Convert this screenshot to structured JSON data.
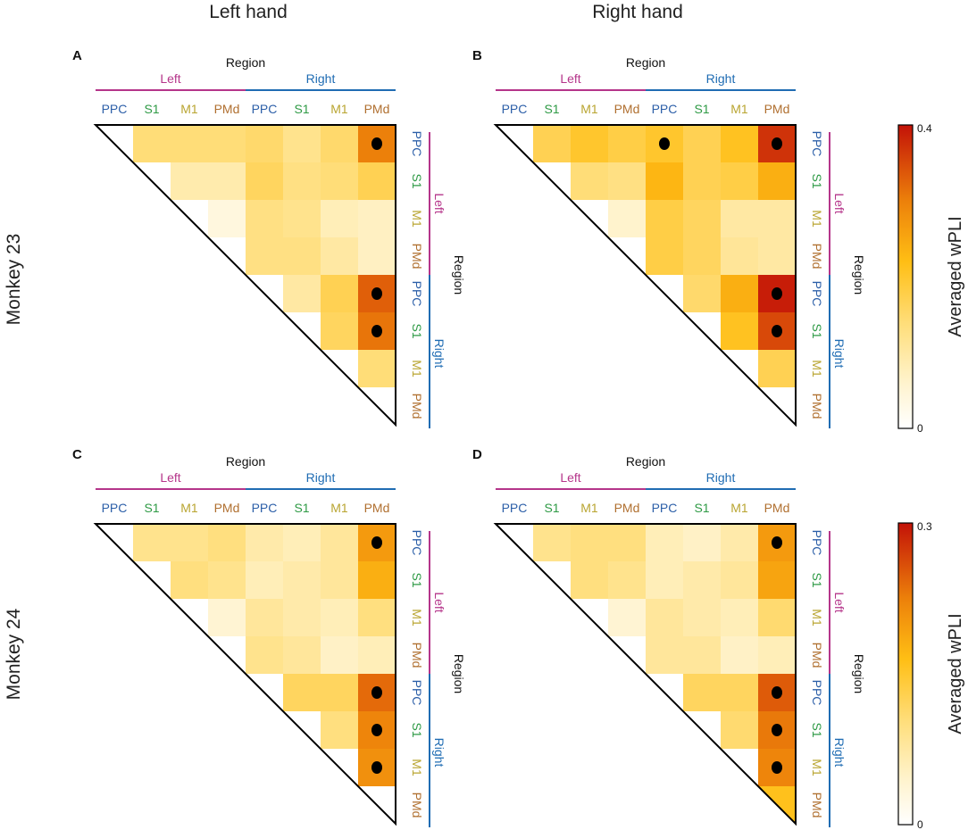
{
  "figure": {
    "col_titles": [
      "Left hand",
      "Right hand"
    ],
    "row_titles": [
      "Monkey 23",
      "Monkey 24"
    ],
    "region_label": "Region",
    "hemispheres": [
      "Left",
      "Right"
    ],
    "regions": [
      "PPC",
      "S1",
      "M1",
      "PMd",
      "PPC",
      "S1",
      "M1",
      "PMd"
    ],
    "colorbar_label": "Averaged wPLI",
    "colors": {
      "left_hemi": "#b5358a",
      "right_hemi": "#1f6cb3",
      "PPC": "#2c5fa8",
      "S1": "#2e9a45",
      "M1": "#b9a531",
      "PMd": "#b07030",
      "dot": "#000000"
    }
  },
  "chart_data": [
    {
      "type": "heatmap",
      "panel": "A",
      "hand": "Left hand",
      "monkey": "Monkey 23",
      "vmin": 0,
      "vmax": 0.4,
      "colorbar_ticks": [
        "0",
        "0.4"
      ],
      "rows": [
        "PPC",
        "S1",
        "M1",
        "PMd",
        "PPC",
        "S1",
        "M1",
        "PMd"
      ],
      "cols": [
        "PPC",
        "S1",
        "M1",
        "PMd",
        "PPC",
        "S1",
        "M1",
        "PMd"
      ],
      "values": [
        [
          0,
          0.14,
          0.14,
          0.14,
          0.15,
          0.12,
          0.15,
          0.3
        ],
        [
          0,
          0,
          0.09,
          0.09,
          0.16,
          0.13,
          0.14,
          0.17
        ],
        [
          0,
          0,
          0,
          0.04,
          0.13,
          0.12,
          0.08,
          0.07
        ],
        [
          0,
          0,
          0,
          0,
          0.13,
          0.13,
          0.1,
          0.07
        ],
        [
          0,
          0,
          0,
          0,
          0,
          0.1,
          0.17,
          0.33
        ],
        [
          0,
          0,
          0,
          0,
          0,
          0,
          0.16,
          0.31
        ],
        [
          0,
          0,
          0,
          0,
          0,
          0,
          0,
          0.14
        ],
        [
          0,
          0,
          0,
          0,
          0,
          0,
          0,
          0
        ]
      ],
      "significant": [
        [
          0,
          7
        ],
        [
          4,
          7
        ],
        [
          5,
          7
        ]
      ]
    },
    {
      "type": "heatmap",
      "panel": "B",
      "hand": "Right hand",
      "monkey": "Monkey 23",
      "vmin": 0,
      "vmax": 0.4,
      "colorbar_ticks": [
        "0",
        "0.4"
      ],
      "rows": [
        "PPC",
        "S1",
        "M1",
        "PMd",
        "PPC",
        "S1",
        "M1",
        "PMd"
      ],
      "cols": [
        "PPC",
        "S1",
        "M1",
        "PMd",
        "PPC",
        "S1",
        "M1",
        "PMd"
      ],
      "values": [
        [
          0,
          0.17,
          0.2,
          0.18,
          0.2,
          0.17,
          0.21,
          0.37
        ],
        [
          0,
          0,
          0.14,
          0.13,
          0.23,
          0.17,
          0.18,
          0.24
        ],
        [
          0,
          0,
          0,
          0.06,
          0.18,
          0.16,
          0.1,
          0.1
        ],
        [
          0,
          0,
          0,
          0,
          0.18,
          0.16,
          0.11,
          0.1
        ],
        [
          0,
          0,
          0,
          0,
          0,
          0.15,
          0.24,
          0.39
        ],
        [
          0,
          0,
          0,
          0,
          0,
          0,
          0.21,
          0.35
        ],
        [
          0,
          0,
          0,
          0,
          0,
          0,
          0,
          0.17
        ],
        [
          0,
          0,
          0,
          0,
          0,
          0,
          0,
          0
        ]
      ],
      "significant": [
        [
          0,
          4
        ],
        [
          0,
          7
        ],
        [
          4,
          7
        ],
        [
          5,
          7
        ]
      ]
    },
    {
      "type": "heatmap",
      "panel": "C",
      "hand": "Left hand",
      "monkey": "Monkey 24",
      "vmin": 0,
      "vmax": 0.3,
      "colorbar_ticks": [
        "0",
        "0.3"
      ],
      "rows": [
        "PPC",
        "S1",
        "M1",
        "PMd",
        "PPC",
        "S1",
        "M1",
        "PMd"
      ],
      "cols": [
        "PPC",
        "S1",
        "M1",
        "PMd",
        "PPC",
        "S1",
        "M1",
        "PMd"
      ],
      "values": [
        [
          0,
          0.09,
          0.09,
          0.1,
          0.07,
          0.06,
          0.08,
          0.2
        ],
        [
          0,
          0,
          0.1,
          0.09,
          0.06,
          0.07,
          0.08,
          0.18
        ],
        [
          0,
          0,
          0,
          0.04,
          0.08,
          0.07,
          0.06,
          0.1
        ],
        [
          0,
          0,
          0,
          0,
          0.09,
          0.08,
          0.05,
          0.06
        ],
        [
          0,
          0,
          0,
          0,
          0,
          0.12,
          0.12,
          0.24
        ],
        [
          0,
          0,
          0,
          0,
          0,
          0,
          0.1,
          0.22
        ],
        [
          0,
          0,
          0,
          0,
          0,
          0,
          0,
          0.21
        ],
        [
          0,
          0,
          0,
          0,
          0,
          0,
          0,
          0
        ]
      ],
      "significant": [
        [
          0,
          7
        ],
        [
          4,
          7
        ],
        [
          5,
          7
        ],
        [
          6,
          7
        ]
      ]
    },
    {
      "type": "heatmap",
      "panel": "D",
      "hand": "Right hand",
      "monkey": "Monkey 24",
      "vmin": 0,
      "vmax": 0.3,
      "colorbar_ticks": [
        "0",
        "0.3"
      ],
      "rows": [
        "PPC",
        "S1",
        "M1",
        "PMd",
        "PPC",
        "S1",
        "M1",
        "PMd"
      ],
      "cols": [
        "PPC",
        "S1",
        "M1",
        "PMd",
        "PPC",
        "S1",
        "M1",
        "PMd"
      ],
      "values": [
        [
          0,
          0.09,
          0.1,
          0.1,
          0.06,
          0.05,
          0.07,
          0.2
        ],
        [
          0,
          0,
          0.1,
          0.09,
          0.06,
          0.07,
          0.08,
          0.19
        ],
        [
          0,
          0,
          0,
          0.04,
          0.08,
          0.07,
          0.06,
          0.11
        ],
        [
          0,
          0,
          0,
          0,
          0.08,
          0.08,
          0.05,
          0.06
        ],
        [
          0,
          0,
          0,
          0,
          0,
          0.12,
          0.12,
          0.25
        ],
        [
          0,
          0,
          0,
          0,
          0,
          0,
          0.11,
          0.23
        ],
        [
          0,
          0,
          0,
          0,
          0,
          0,
          0,
          0.22
        ],
        [
          0,
          0,
          0,
          0,
          0,
          0,
          0,
          0.16
        ]
      ],
      "significant": [
        [
          0,
          7
        ],
        [
          4,
          7
        ],
        [
          5,
          7
        ],
        [
          6,
          7
        ]
      ]
    }
  ]
}
